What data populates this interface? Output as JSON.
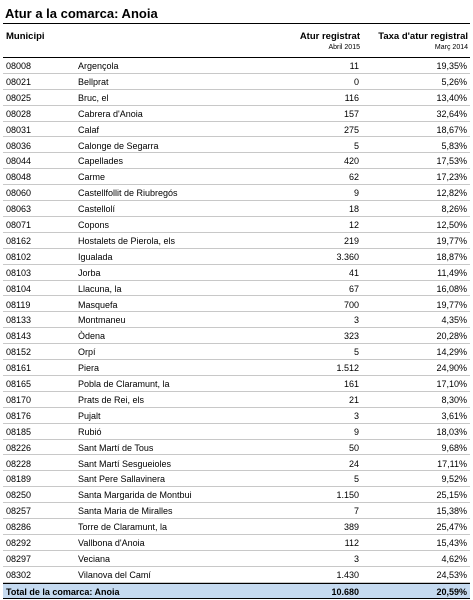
{
  "title": "Atur a la comarca: Anoia",
  "header": {
    "municipi": "Municipi",
    "atur": "Atur registrat",
    "atur_date": "Abril 2015",
    "taxa": "Taxa d'atur registral",
    "taxa_date": "Març 2014"
  },
  "rows": [
    [
      "08008",
      "Argençola",
      "11",
      "19,35%"
    ],
    [
      "08021",
      "Bellprat",
      "0",
      "5,26%"
    ],
    [
      "08025",
      "Bruc, el",
      "116",
      "13,40%"
    ],
    [
      "08028",
      "Cabrera d'Anoia",
      "157",
      "32,64%"
    ],
    [
      "08031",
      "Calaf",
      "275",
      "18,67%"
    ],
    [
      "08036",
      "Calonge de Segarra",
      "5",
      "5,83%"
    ],
    [
      "08044",
      "Capellades",
      "420",
      "17,53%"
    ],
    [
      "08048",
      "Carme",
      "62",
      "17,23%"
    ],
    [
      "08060",
      "Castellfollit de Riubregós",
      "9",
      "12,82%"
    ],
    [
      "08063",
      "Castellolí",
      "18",
      "8,26%"
    ],
    [
      "08071",
      "Copons",
      "12",
      "12,50%"
    ],
    [
      "08162",
      "Hostalets de Pierola, els",
      "219",
      "19,77%"
    ],
    [
      "08102",
      "Igualada",
      "3.360",
      "18,87%"
    ],
    [
      "08103",
      "Jorba",
      "41",
      "11,49%"
    ],
    [
      "08104",
      "Llacuna, la",
      "67",
      "16,08%"
    ],
    [
      "08119",
      "Masquefa",
      "700",
      "19,77%"
    ],
    [
      "08133",
      "Montmaneu",
      "3",
      "4,35%"
    ],
    [
      "08143",
      "Òdena",
      "323",
      "20,28%"
    ],
    [
      "08152",
      "Orpí",
      "5",
      "14,29%"
    ],
    [
      "08161",
      "Piera",
      "1.512",
      "24,90%"
    ],
    [
      "08165",
      "Pobla de Claramunt, la",
      "161",
      "17,10%"
    ],
    [
      "08170",
      "Prats de Rei, els",
      "21",
      "8,30%"
    ],
    [
      "08176",
      "Pujalt",
      "3",
      "3,61%"
    ],
    [
      "08185",
      "Rubió",
      "9",
      "18,03%"
    ],
    [
      "08226",
      "Sant Martí de Tous",
      "50",
      "9,68%"
    ],
    [
      "08228",
      "Sant Martí Sesgueioles",
      "24",
      "17,11%"
    ],
    [
      "08189",
      "Sant Pere Sallavinera",
      "5",
      "9,52%"
    ],
    [
      "08250",
      "Santa Margarida de Montbui",
      "1.150",
      "25,15%"
    ],
    [
      "08257",
      "Santa Maria de Miralles",
      "7",
      "15,38%"
    ],
    [
      "08286",
      "Torre de Claramunt, la",
      "389",
      "25,47%"
    ],
    [
      "08292",
      "Vallbona d'Anoia",
      "112",
      "15,43%"
    ],
    [
      "08297",
      "Veciana",
      "3",
      "4,62%"
    ],
    [
      "08302",
      "Vilanova del Camí",
      "1.430",
      "24,53%"
    ]
  ],
  "total": [
    "Total de la comarca: Anoia",
    "10.680",
    "20,59%"
  ]
}
